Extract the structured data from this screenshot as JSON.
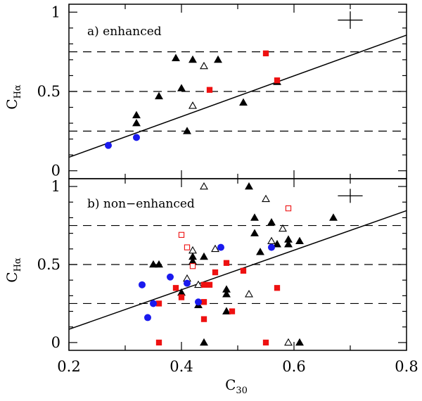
{
  "chart_data": [
    {
      "type": "scatter",
      "panel_label": "a) enhanced",
      "ylabel": "C",
      "ylabel_sub": "Hα",
      "xlim": [
        0.2,
        0.8
      ],
      "ylim": [
        -0.05,
        1.05
      ],
      "yticks": [
        "0",
        "0.5",
        "1"
      ],
      "ytick_values": [
        0,
        0.5,
        1
      ],
      "dashed_lines": [
        0.25,
        0.5,
        0.75
      ],
      "fit_line": {
        "x": [
          0.2,
          0.8
        ],
        "y": [
          0.085,
          0.855
        ]
      },
      "error_cross": {
        "x": 0.7,
        "y": 0.95,
        "dx": 0.022,
        "dy": 0.055
      },
      "series": [
        {
          "name": "filled triangles",
          "marker": "triangle-filled",
          "color": "#000000",
          "points": [
            [
              0.32,
              0.35
            ],
            [
              0.32,
              0.3
            ],
            [
              0.36,
              0.47
            ],
            [
              0.39,
              0.71
            ],
            [
              0.4,
              0.52
            ],
            [
              0.41,
              0.25
            ],
            [
              0.42,
              0.7
            ],
            [
              0.465,
              0.7
            ],
            [
              0.51,
              0.43
            ],
            [
              0.57,
              0.56
            ]
          ]
        },
        {
          "name": "open triangles",
          "marker": "triangle-open",
          "color": "#000000",
          "points": [
            [
              0.42,
              0.41
            ],
            [
              0.44,
              0.66
            ]
          ]
        },
        {
          "name": "filled squares",
          "marker": "square-filled",
          "color": "#ee1111",
          "points": [
            [
              0.45,
              0.51
            ],
            [
              0.55,
              0.74
            ],
            [
              0.57,
              0.57
            ]
          ]
        },
        {
          "name": "filled circles",
          "marker": "circle-filled",
          "color": "#1a1aee",
          "points": [
            [
              0.27,
              0.16
            ],
            [
              0.32,
              0.21
            ]
          ]
        }
      ]
    },
    {
      "type": "scatter",
      "panel_label": "b) non−enhanced",
      "ylabel": "C",
      "ylabel_sub": "Hα",
      "xlabel": "C",
      "xlabel_sub": "30",
      "xlim": [
        0.2,
        0.8
      ],
      "ylim": [
        -0.05,
        1.05
      ],
      "xticks": [
        "0.2",
        "0.4",
        "0.6",
        "0.8"
      ],
      "xtick_values": [
        0.2,
        0.4,
        0.6,
        0.8
      ],
      "yticks": [
        "0",
        "0.5",
        "1"
      ],
      "ytick_values": [
        0,
        0.5,
        1
      ],
      "dashed_lines": [
        0.25,
        0.5,
        0.75
      ],
      "fit_line": {
        "x": [
          0.2,
          0.8
        ],
        "y": [
          0.085,
          0.845
        ]
      },
      "error_cross": {
        "x": 0.7,
        "y": 0.94,
        "dx": 0.022,
        "dy": 0.045
      },
      "series": [
        {
          "name": "filled triangles",
          "marker": "triangle-filled",
          "color": "#000000",
          "points": [
            [
              0.35,
              0.5
            ],
            [
              0.36,
              0.5
            ],
            [
              0.4,
              0.32
            ],
            [
              0.42,
              0.55
            ],
            [
              0.42,
              0.52
            ],
            [
              0.43,
              0.24
            ],
            [
              0.44,
              0.55
            ],
            [
              0.44,
              0.0
            ],
            [
              0.48,
              0.34
            ],
            [
              0.48,
              0.31
            ],
            [
              0.48,
              0.2
            ],
            [
              0.52,
              1.0
            ],
            [
              0.53,
              0.8
            ],
            [
              0.53,
              0.7
            ],
            [
              0.54,
              0.58
            ],
            [
              0.56,
              0.77
            ],
            [
              0.57,
              0.63
            ],
            [
              0.59,
              0.66
            ],
            [
              0.59,
              0.63
            ],
            [
              0.61,
              0.65
            ],
            [
              0.61,
              0.0
            ],
            [
              0.67,
              0.8
            ]
          ]
        },
        {
          "name": "open triangles",
          "marker": "triangle-open",
          "color": "#000000",
          "points": [
            [
              0.41,
              0.41
            ],
            [
              0.42,
              0.59
            ],
            [
              0.43,
              0.37
            ],
            [
              0.44,
              1.0
            ],
            [
              0.46,
              0.6
            ],
            [
              0.52,
              0.31
            ],
            [
              0.55,
              0.92
            ],
            [
              0.56,
              0.65
            ],
            [
              0.58,
              0.73
            ],
            [
              0.59,
              0.0
            ]
          ]
        },
        {
          "name": "filled squares",
          "marker": "square-filled",
          "color": "#ee1111",
          "points": [
            [
              0.36,
              0.0
            ],
            [
              0.36,
              0.25
            ],
            [
              0.39,
              0.35
            ],
            [
              0.4,
              0.29
            ],
            [
              0.44,
              0.37
            ],
            [
              0.44,
              0.26
            ],
            [
              0.44,
              0.15
            ],
            [
              0.45,
              0.37
            ],
            [
              0.46,
              0.45
            ],
            [
              0.48,
              0.51
            ],
            [
              0.49,
              0.2
            ],
            [
              0.51,
              0.46
            ],
            [
              0.55,
              0.0
            ],
            [
              0.57,
              0.35
            ]
          ]
        },
        {
          "name": "open squares",
          "marker": "square-open",
          "color": "#ee1111",
          "points": [
            [
              0.4,
              0.69
            ],
            [
              0.41,
              0.61
            ],
            [
              0.42,
              0.49
            ],
            [
              0.59,
              0.86
            ]
          ]
        },
        {
          "name": "filled circles",
          "marker": "circle-filled",
          "color": "#1a1aee",
          "points": [
            [
              0.33,
              0.37
            ],
            [
              0.34,
              0.16
            ],
            [
              0.35,
              0.25
            ],
            [
              0.38,
              0.42
            ],
            [
              0.41,
              0.38
            ],
            [
              0.43,
              0.26
            ],
            [
              0.47,
              0.61
            ],
            [
              0.56,
              0.61
            ]
          ]
        }
      ]
    }
  ]
}
